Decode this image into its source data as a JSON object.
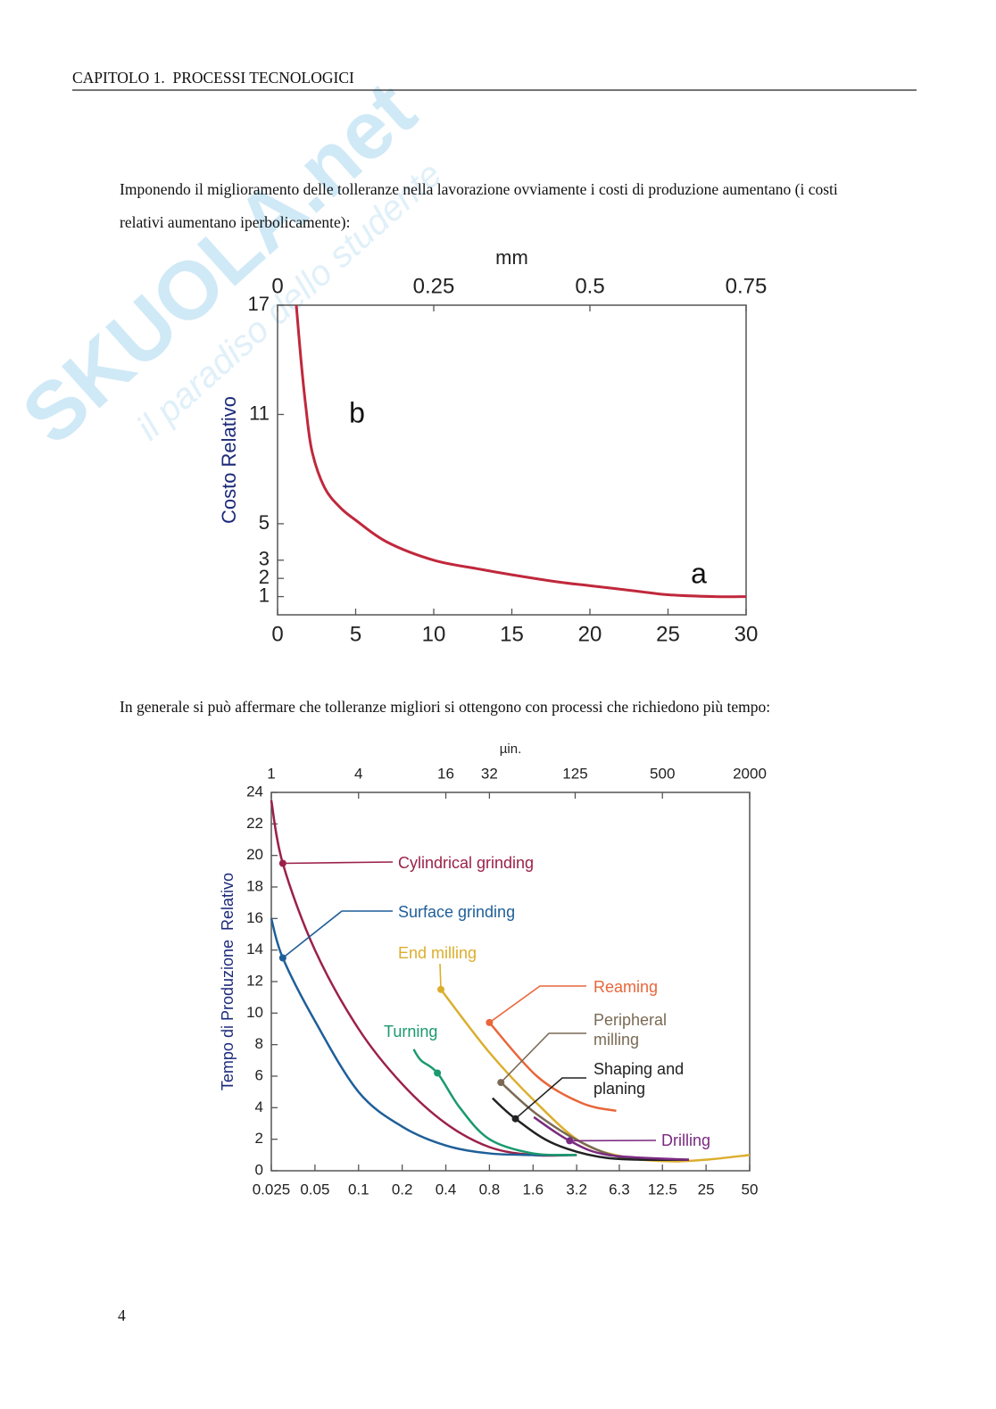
{
  "header": {
    "title": "CAPITOLO 1.  PROCESSI TECNOLOGICI"
  },
  "watermark": {
    "logo": "SKUOLA.net",
    "tagline": "il paradiso dello studente"
  },
  "paragraphs": [
    "Imponendo il miglioramento delle tolleranze nella lavorazione ovviamente i costi di produzione aumentano (i costi relativi aumentano iperbolicamente):",
    "In generale si può affermare che tolleranze migliori si ottengono con processi che richiedono più tempo:"
  ],
  "page_number": "4",
  "chart_data": [
    {
      "type": "line",
      "ylabel": "Costo Relativo",
      "x2label": "mm",
      "x": [
        1.2,
        1.5,
        1.8,
        2.2,
        3,
        4,
        5,
        7,
        10,
        13,
        15,
        18,
        20,
        23,
        25,
        28,
        30
      ],
      "values": [
        17,
        14,
        11.5,
        9,
        7,
        5.9,
        5.2,
        4,
        3,
        2.5,
        2.2,
        1.8,
        1.6,
        1.3,
        1.1,
        1,
        1
      ],
      "color": "#c0283c",
      "xlim": [
        0,
        30
      ],
      "xticks": [
        0,
        5,
        10,
        15,
        20,
        25,
        30
      ],
      "x2lim": [
        0,
        0.75
      ],
      "x2ticks": [
        0,
        0.25,
        0.5,
        0.75
      ],
      "ylim": [
        0,
        17
      ],
      "yticks": [
        1,
        2,
        3,
        5,
        11,
        17
      ],
      "annotations": [
        "b",
        "a"
      ],
      "grid": false,
      "log_x": false
    },
    {
      "type": "line",
      "ylabel": "Tempo di Produzione  Relativo",
      "x2label": "µin.",
      "log_x": true,
      "grid": false,
      "xlim": [
        0.025,
        50
      ],
      "xticks": [
        0.025,
        0.05,
        0.1,
        0.2,
        0.4,
        0.8,
        1.6,
        3.2,
        6.3,
        12.5,
        25,
        50
      ],
      "x2lim": [
        1,
        2000
      ],
      "x2ticks": [
        1,
        4,
        16,
        32,
        125,
        500,
        2000
      ],
      "ylim": [
        0,
        24
      ],
      "yticks": [
        0,
        2,
        4,
        6,
        8,
        10,
        12,
        14,
        16,
        18,
        20,
        22,
        24
      ],
      "series": [
        {
          "name": "Cylindrical grinding",
          "color": "#9b2148",
          "x": [
            0.025,
            0.03,
            0.05,
            0.1,
            0.2,
            0.4,
            0.8,
            1.6,
            3.2
          ],
          "values": [
            23.5,
            19.5,
            14,
            9,
            5.5,
            3,
            1.5,
            1,
            1
          ]
        },
        {
          "name": "Surface grinding",
          "color": "#1f5f99",
          "x": [
            0.025,
            0.03,
            0.05,
            0.1,
            0.2,
            0.4,
            0.8,
            1.6,
            3.2
          ],
          "values": [
            16,
            13.5,
            9.5,
            5,
            2.8,
            1.6,
            1.1,
            1,
            1
          ]
        },
        {
          "name": "End milling",
          "color": "#dcae2e",
          "x": [
            0.37,
            0.8,
            1.69,
            3.45,
            7,
            14.3,
            25,
            50
          ],
          "values": [
            11.5,
            7.5,
            4.3,
            1.8,
            0.85,
            0.6,
            0.7,
            1
          ]
        },
        {
          "name": "Turning",
          "color": "#1a9a6e",
          "x": [
            0.24,
            0.27,
            0.35,
            0.5,
            0.8,
            1.6,
            3.2
          ],
          "values": [
            7.7,
            7,
            6.2,
            4,
            2,
            1.1,
            1
          ]
        },
        {
          "name": "Reaming",
          "color": "#e8663a",
          "x": [
            0.8,
            1.7,
            3.45,
            6
          ],
          "values": [
            9.4,
            6,
            4.3,
            3.8
          ]
        },
        {
          "name": "Peripheral milling",
          "color": "#7a6a55",
          "x": [
            0.96,
            1.69,
            3.45,
            7,
            19
          ],
          "values": [
            5.6,
            3.6,
            1.8,
            0.8,
            0.7
          ]
        },
        {
          "name": "Shaping and planing",
          "color": "#222222",
          "x": [
            0.84,
            1.21,
            2.25,
            5.3,
            19
          ],
          "values": [
            4.6,
            3.3,
            1.7,
            0.8,
            0.7
          ]
        },
        {
          "name": "Drilling",
          "color": "#7a2a80",
          "x": [
            1.62,
            2.86,
            5.3,
            19
          ],
          "values": [
            3.4,
            1.9,
            1,
            0.7
          ]
        }
      ]
    }
  ]
}
